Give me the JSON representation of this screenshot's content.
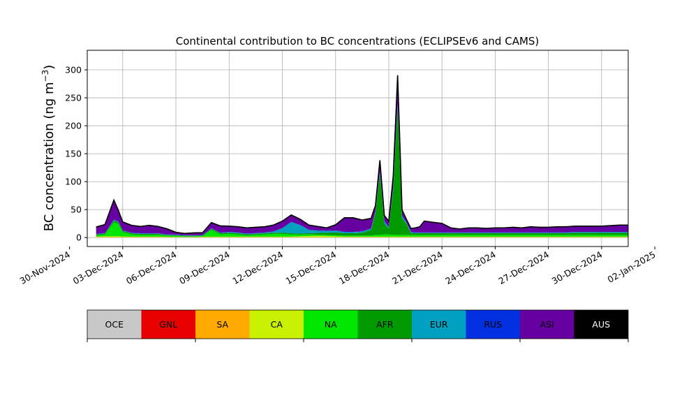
{
  "chart_data": {
    "type": "area",
    "stacked": true,
    "title": "Continental contribution to BC concentrations (ECLIPSEv6 and CAMS)",
    "ylabel_text": "BC concentration (ng m",
    "ylabel_sup": "−3",
    "ylabel_close": ")",
    "xlabel": "",
    "grid": true,
    "xlim": [
      "2024-12-01T00:00",
      "2024-12-31T12:00"
    ],
    "ylim": [
      -16,
      335
    ],
    "yticks": [
      0,
      50,
      100,
      150,
      200,
      250,
      300
    ],
    "xticks": [
      {
        "date": "2024-11-30",
        "label": "30-Nov-2024"
      },
      {
        "date": "2024-12-03",
        "label": "03-Dec-2024"
      },
      {
        "date": "2024-12-06",
        "label": "06-Dec-2024"
      },
      {
        "date": "2024-12-09",
        "label": "09-Dec-2024"
      },
      {
        "date": "2024-12-12",
        "label": "12-Dec-2024"
      },
      {
        "date": "2024-12-15",
        "label": "15-Dec-2024"
      },
      {
        "date": "2024-12-18",
        "label": "18-Dec-2024"
      },
      {
        "date": "2024-12-21",
        "label": "21-Dec-2024"
      },
      {
        "date": "2024-12-24",
        "label": "24-Dec-2024"
      },
      {
        "date": "2024-12-27",
        "label": "27-Dec-2024"
      },
      {
        "date": "2024-12-30",
        "label": "30-Dec-2024"
      },
      {
        "date": "2025-01-02",
        "label": "02-Jan-2025"
      }
    ],
    "x": [
      "2024-12-01T12:00",
      "2024-12-02T00:00",
      "2024-12-02T12:00",
      "2024-12-02T18:00",
      "2024-12-03T00:00",
      "2024-12-03T12:00",
      "2024-12-04T00:00",
      "2024-12-04T12:00",
      "2024-12-05T00:00",
      "2024-12-05T12:00",
      "2024-12-06T00:00",
      "2024-12-06T12:00",
      "2024-12-07T00:00",
      "2024-12-07T12:00",
      "2024-12-08T00:00",
      "2024-12-08T12:00",
      "2024-12-09T00:00",
      "2024-12-09T12:00",
      "2024-12-10T00:00",
      "2024-12-10T12:00",
      "2024-12-11T00:00",
      "2024-12-11T12:00",
      "2024-12-12T00:00",
      "2024-12-12T12:00",
      "2024-12-13T00:00",
      "2024-12-13T12:00",
      "2024-12-14T00:00",
      "2024-12-14T12:00",
      "2024-12-15T00:00",
      "2024-12-15T12:00",
      "2024-12-16T00:00",
      "2024-12-16T12:00",
      "2024-12-17T00:00",
      "2024-12-17T06:00",
      "2024-12-17T12:00",
      "2024-12-17T18:00",
      "2024-12-18T00:00",
      "2024-12-18T06:00",
      "2024-12-18T12:00",
      "2024-12-18T18:00",
      "2024-12-19T00:00",
      "2024-12-19T06:00",
      "2024-12-19T12:00",
      "2024-12-19T18:00",
      "2024-12-20T00:00",
      "2024-12-20T12:00",
      "2024-12-21T00:00",
      "2024-12-21T12:00",
      "2024-12-22T00:00",
      "2024-12-22T12:00",
      "2024-12-23T00:00",
      "2024-12-23T12:00",
      "2024-12-24T00:00",
      "2024-12-24T12:00",
      "2024-12-25T00:00",
      "2024-12-25T12:00",
      "2024-12-26T00:00",
      "2024-12-26T12:00",
      "2024-12-27T00:00",
      "2024-12-27T12:00",
      "2024-12-28T00:00",
      "2024-12-28T12:00",
      "2024-12-29T00:00",
      "2024-12-29T12:00",
      "2024-12-30T00:00",
      "2024-12-30T12:00",
      "2024-12-31T00:00",
      "2024-12-31T12:00"
    ],
    "series": [
      {
        "name": "OCE",
        "color": "#c8c8c8",
        "values": [
          0.3,
          0.3,
          0.3,
          0.3,
          0.3,
          0.3,
          0.3,
          0.3,
          0.3,
          0.3,
          0.3,
          0.3,
          0.3,
          0.3,
          0.3,
          0.3,
          0.3,
          0.3,
          0.3,
          0.3,
          0.3,
          0.3,
          0.3,
          0.3,
          0.3,
          0.3,
          0.3,
          0.3,
          0.3,
          0.3,
          0.3,
          0.3,
          0.3,
          0.3,
          0.3,
          0.3,
          0.3,
          0.3,
          0.3,
          0.3,
          0.3,
          0.3,
          0.3,
          0.3,
          0.3,
          0.3,
          0.3,
          0.3,
          0.3,
          0.3,
          0.3,
          0.3,
          0.3,
          0.3,
          0.3,
          0.3,
          0.3,
          0.3,
          0.3,
          0.3,
          0.3,
          0.3,
          0.3,
          0.3,
          0.3,
          0.3,
          0.3,
          0.3
        ]
      },
      {
        "name": "GNL",
        "color": "#e60000",
        "values": [
          0.1,
          0.1,
          0.1,
          0.1,
          0.1,
          0.1,
          0.1,
          0.1,
          0.1,
          0.1,
          0.1,
          0.1,
          0.1,
          0.1,
          0.1,
          0.1,
          0.1,
          0.1,
          0.1,
          0.1,
          0.1,
          0.1,
          0.1,
          0.1,
          0.1,
          0.1,
          0.1,
          0.1,
          0.1,
          0.1,
          0.1,
          0.1,
          0.1,
          0.1,
          0.1,
          0.1,
          0.1,
          0.1,
          0.1,
          0.1,
          0.1,
          0.1,
          0.1,
          0.1,
          0.1,
          0.1,
          0.1,
          0.1,
          0.1,
          0.1,
          0.1,
          0.1,
          0.1,
          0.1,
          0.1,
          0.1,
          0.1,
          0.1,
          0.1,
          0.1,
          0.1,
          0.1,
          0.1,
          0.1,
          0.1,
          0.1,
          0.1,
          0.1
        ]
      },
      {
        "name": "SA",
        "color": "#ffaa00",
        "values": [
          0.3,
          0.3,
          0.5,
          0.5,
          0.4,
          0.3,
          0.3,
          0.3,
          0.3,
          0.3,
          0.2,
          0.2,
          0.3,
          0.3,
          0.3,
          0.3,
          0.3,
          0.3,
          0.3,
          0.3,
          0.3,
          0.3,
          0.3,
          0.3,
          0.3,
          0.3,
          0.3,
          0.3,
          0.3,
          0.3,
          0.3,
          0.3,
          0.3,
          0.3,
          0.3,
          0.3,
          0.3,
          0.3,
          0.3,
          0.3,
          0.3,
          0.3,
          0.3,
          0.3,
          0.3,
          0.3,
          0.3,
          0.3,
          0.3,
          0.3,
          0.3,
          0.3,
          0.3,
          0.3,
          0.3,
          0.3,
          0.3,
          0.3,
          0.3,
          0.3,
          0.3,
          0.3,
          0.3,
          0.3,
          0.3,
          0.3,
          0.3,
          0.3
        ]
      },
      {
        "name": "CA",
        "color": "#c8f000",
        "values": [
          1,
          1.5,
          1.5,
          1.5,
          1,
          1,
          1,
          1,
          1,
          0.8,
          0.6,
          0.5,
          0.5,
          0.8,
          1,
          1,
          1,
          1,
          1,
          1,
          1,
          1,
          1,
          1,
          1.5,
          2,
          2.5,
          2,
          1.5,
          1,
          1,
          1,
          1,
          1,
          1,
          1,
          1,
          1,
          1,
          1,
          1,
          1,
          1,
          1,
          1,
          1,
          1,
          1,
          1,
          1,
          1,
          1,
          1,
          1,
          1,
          1,
          1,
          1,
          1,
          1,
          1,
          1,
          1,
          1,
          1,
          1,
          1,
          1
        ]
      },
      {
        "name": "NA",
        "color": "#00e600",
        "values": [
          2,
          3,
          25,
          22,
          8,
          4,
          3,
          3,
          3,
          2,
          2,
          1,
          1,
          1,
          12,
          4,
          5,
          4,
          2,
          3,
          4,
          5,
          5,
          4,
          3,
          3,
          2,
          2,
          2,
          2,
          2,
          2,
          2,
          3,
          3,
          4,
          4,
          3,
          3,
          3,
          3,
          3,
          3,
          3,
          3,
          3,
          3,
          3,
          3,
          3,
          3,
          3,
          3,
          3,
          3,
          3,
          3,
          3,
          3,
          3,
          3,
          3,
          3,
          3,
          3,
          3,
          3,
          3
        ]
      },
      {
        "name": "AFR",
        "color": "#009900",
        "values": [
          2,
          2,
          3,
          3,
          2,
          2,
          2,
          2,
          2,
          1,
          1,
          1,
          1,
          1,
          2,
          2,
          2,
          2,
          2,
          2,
          2,
          2,
          2,
          2,
          2,
          2,
          3,
          4,
          5,
          4,
          4,
          5,
          10,
          40,
          110,
          20,
          10,
          80,
          230,
          30,
          20,
          3,
          3,
          3,
          3,
          3,
          3,
          3,
          3,
          3,
          3,
          3,
          3,
          3,
          3,
          3,
          3,
          3,
          3,
          3,
          3,
          4,
          4,
          4,
          4,
          4,
          4,
          4
        ]
      },
      {
        "name": "EUR",
        "color": "#00a0c0",
        "values": [
          0.5,
          0.5,
          1,
          1,
          0.5,
          0.5,
          0.5,
          0.5,
          0.5,
          0.5,
          0.5,
          0.5,
          0.5,
          0.5,
          0.5,
          0.5,
          1,
          1,
          1,
          1,
          1,
          2,
          8,
          20,
          15,
          6,
          4,
          3,
          3,
          2,
          2,
          2,
          2,
          2,
          3,
          3,
          3,
          4,
          5,
          4,
          2,
          2,
          1,
          1,
          1,
          1,
          1,
          1,
          1,
          1,
          1,
          1,
          1,
          1,
          1,
          1,
          1,
          1,
          1,
          1,
          1,
          1,
          1,
          1,
          1,
          1,
          1,
          1
        ]
      },
      {
        "name": "RUS",
        "color": "#0030e0",
        "values": [
          0.5,
          0.5,
          0.5,
          0.5,
          0.5,
          0.5,
          0.5,
          0.5,
          0.5,
          0.5,
          0.5,
          0.5,
          0.5,
          0.5,
          0.5,
          0.5,
          0.5,
          0.5,
          0.5,
          0.5,
          0.5,
          0.5,
          0.5,
          0.5,
          0.5,
          0.5,
          0.5,
          0.5,
          0.5,
          0.5,
          0.5,
          0.5,
          0.5,
          0.5,
          0.5,
          0.5,
          0.5,
          0.5,
          0.5,
          0.5,
          0.5,
          0.5,
          0.5,
          0.5,
          0.5,
          0.5,
          0.5,
          0.5,
          0.5,
          0.5,
          0.5,
          0.5,
          0.5,
          0.5,
          0.5,
          0.5,
          0.5,
          0.5,
          0.5,
          0.5,
          0.5,
          0.5,
          0.5,
          0.5,
          0.5,
          0.5,
          0.5,
          0.5
        ]
      },
      {
        "name": "ASI",
        "color": "#6600a0",
        "values": [
          12,
          15,
          35,
          20,
          15,
          13,
          12,
          14,
          12,
          10,
          4,
          3,
          4,
          4,
          10,
          12,
          10,
          10,
          10,
          10,
          10,
          11,
          12,
          12,
          10,
          8,
          7,
          5,
          10,
          25,
          25,
          20,
          18,
          10,
          20,
          10,
          10,
          20,
          50,
          10,
          5,
          6,
          8,
          10,
          20,
          18,
          16,
          8,
          6,
          8,
          8,
          7,
          8,
          8,
          9,
          8,
          10,
          9,
          9,
          10,
          10,
          10,
          10,
          10,
          10,
          11,
          12,
          12
        ]
      },
      {
        "name": "AUS",
        "color": "#000000",
        "values": [
          0.2,
          0.2,
          0.2,
          0.2,
          0.2,
          0.2,
          0.2,
          0.2,
          0.2,
          0.2,
          0.2,
          0.2,
          0.2,
          0.2,
          0.2,
          0.2,
          0.2,
          0.2,
          0.2,
          0.2,
          0.2,
          0.2,
          0.2,
          0.2,
          0.2,
          0.2,
          0.2,
          0.2,
          0.2,
          0.2,
          0.2,
          0.2,
          0.2,
          0.2,
          0.2,
          0.2,
          0.2,
          0.2,
          0.2,
          0.2,
          0.2,
          0.2,
          0.2,
          0.2,
          0.2,
          0.2,
          0.2,
          0.2,
          0.2,
          0.2,
          0.2,
          0.2,
          0.2,
          0.2,
          0.2,
          0.2,
          0.2,
          0.2,
          0.2,
          0.2,
          0.2,
          0.2,
          0.2,
          0.2,
          0.2,
          0.2,
          0.2,
          0.2
        ]
      }
    ],
    "legend": {
      "placement": "bottom colorbar",
      "entries": [
        "OCE",
        "GNL",
        "SA",
        "CA",
        "NA",
        "AFR",
        "EUR",
        "RUS",
        "ASI",
        "AUS"
      ]
    }
  }
}
